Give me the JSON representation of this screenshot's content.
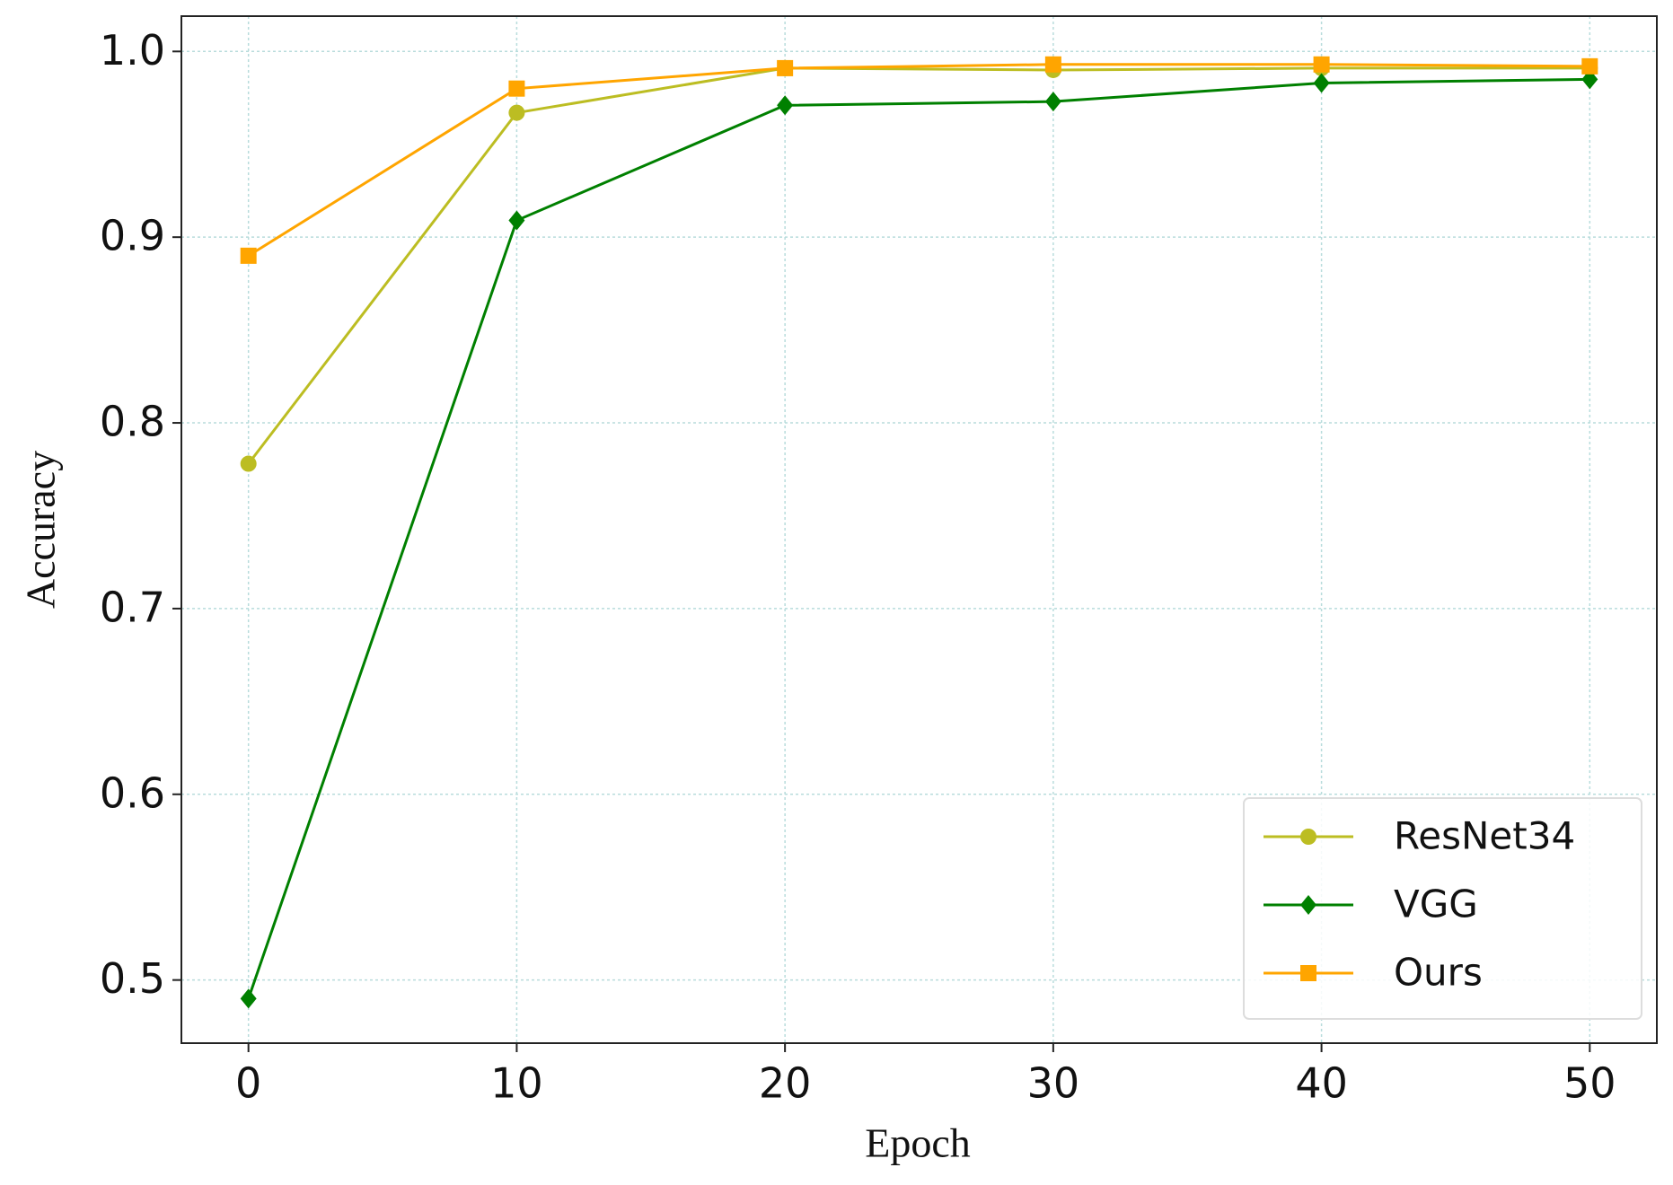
{
  "chart_data": {
    "type": "line",
    "x_label": "Epoch",
    "y_label": "Accuracy",
    "x": [
      0,
      10,
      20,
      30,
      40,
      50
    ],
    "series": [
      {
        "name": "ResNet34",
        "color": "#bcbd22",
        "marker": "circle",
        "values": [
          0.778,
          0.967,
          0.991,
          0.99,
          0.991,
          0.991
        ]
      },
      {
        "name": "VGG",
        "color": "#008000",
        "marker": "diamond",
        "values": [
          0.49,
          0.909,
          0.971,
          0.973,
          0.983,
          0.985
        ]
      },
      {
        "name": "Ours",
        "color": "#ffa500",
        "marker": "square",
        "values": [
          0.89,
          0.98,
          0.991,
          0.993,
          0.993,
          0.992
        ]
      }
    ],
    "xlim": [
      -2.5,
      52.5
    ],
    "xticks": [
      0,
      10,
      20,
      30,
      40,
      50
    ],
    "ylim": [
      0.466,
      1.019
    ],
    "yticks": [
      {
        "value": 0.5,
        "label": "0.5"
      },
      {
        "value": 0.6,
        "label": "0.6"
      },
      {
        "value": 0.7,
        "label": "0.7"
      },
      {
        "value": 0.8,
        "label": "0.8"
      },
      {
        "value": 0.9,
        "label": "0.9"
      },
      {
        "value": 1.0,
        "label": "1.0"
      }
    ],
    "grid": true,
    "legend": "lower right"
  }
}
